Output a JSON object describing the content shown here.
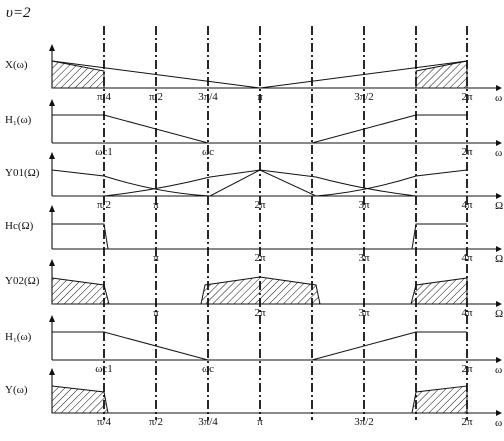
{
  "title": "υ=2",
  "colors": {
    "ink": "#111111",
    "background": "#ffffff"
  },
  "panels": [
    {
      "id": "x",
      "ylabel": "X(ω)",
      "xvar": "ω",
      "ticks": [
        {
          "t": "π/4",
          "k": "a"
        },
        {
          "t": "π/2",
          "k": "b"
        },
        {
          "t": "3π/4",
          "k": "c"
        },
        {
          "t": "π",
          "k": "d"
        },
        {
          "t": "3π/2",
          "k": "e"
        },
        {
          "t": "2π",
          "k": "f"
        }
      ]
    },
    {
      "id": "h1",
      "ylabel": "H₁(ω)",
      "xvar": "ω",
      "ticks": [
        {
          "t": "ωc1",
          "k": "a",
          "lo": true
        },
        {
          "t": "ωc",
          "k": "c",
          "lo": true
        },
        {
          "t": "2π",
          "k": "f",
          "lo": true
        }
      ]
    },
    {
      "id": "y01",
      "ylabel": "Y01(Ω)",
      "xvar": "Ω",
      "ticks": [
        {
          "t": "π/2",
          "k": "a"
        },
        {
          "t": "π",
          "k": "b"
        },
        {
          "t": "2π",
          "k": "d"
        },
        {
          "t": "3π",
          "k": "e"
        },
        {
          "t": "4π",
          "k": "f"
        }
      ]
    },
    {
      "id": "hc",
      "ylabel": "Hc(Ω)",
      "xvar": "Ω",
      "ticks": [
        {
          "t": "π",
          "k": "b"
        },
        {
          "t": "2π",
          "k": "d"
        },
        {
          "t": "3π",
          "k": "e"
        },
        {
          "t": "4π",
          "k": "f"
        }
      ]
    },
    {
      "id": "y02",
      "ylabel": "Y02(Ω)",
      "xvar": "Ω",
      "ticks": [
        {
          "t": "π",
          "k": "b"
        },
        {
          "t": "2π",
          "k": "d"
        },
        {
          "t": "3π",
          "k": "e"
        },
        {
          "t": "4π",
          "k": "f"
        }
      ]
    },
    {
      "id": "h1b",
      "ylabel": "H₁(ω)",
      "xvar": "ω",
      "ticks": [
        {
          "t": "ωc1",
          "k": "a",
          "lo": true
        },
        {
          "t": "ωc",
          "k": "c",
          "lo": true
        },
        {
          "t": "2π",
          "k": "f",
          "lo": true
        }
      ]
    },
    {
      "id": "y",
      "ylabel": "Y(ω)",
      "xvar": "ω",
      "ticks": [
        {
          "t": "π/4",
          "k": "a"
        },
        {
          "t": "π/2",
          "k": "b"
        },
        {
          "t": "3π/4",
          "k": "c"
        },
        {
          "t": "π",
          "k": "d"
        },
        {
          "t": "3π/2",
          "k": "e"
        },
        {
          "t": "2π",
          "k": "f"
        }
      ]
    }
  ]
}
